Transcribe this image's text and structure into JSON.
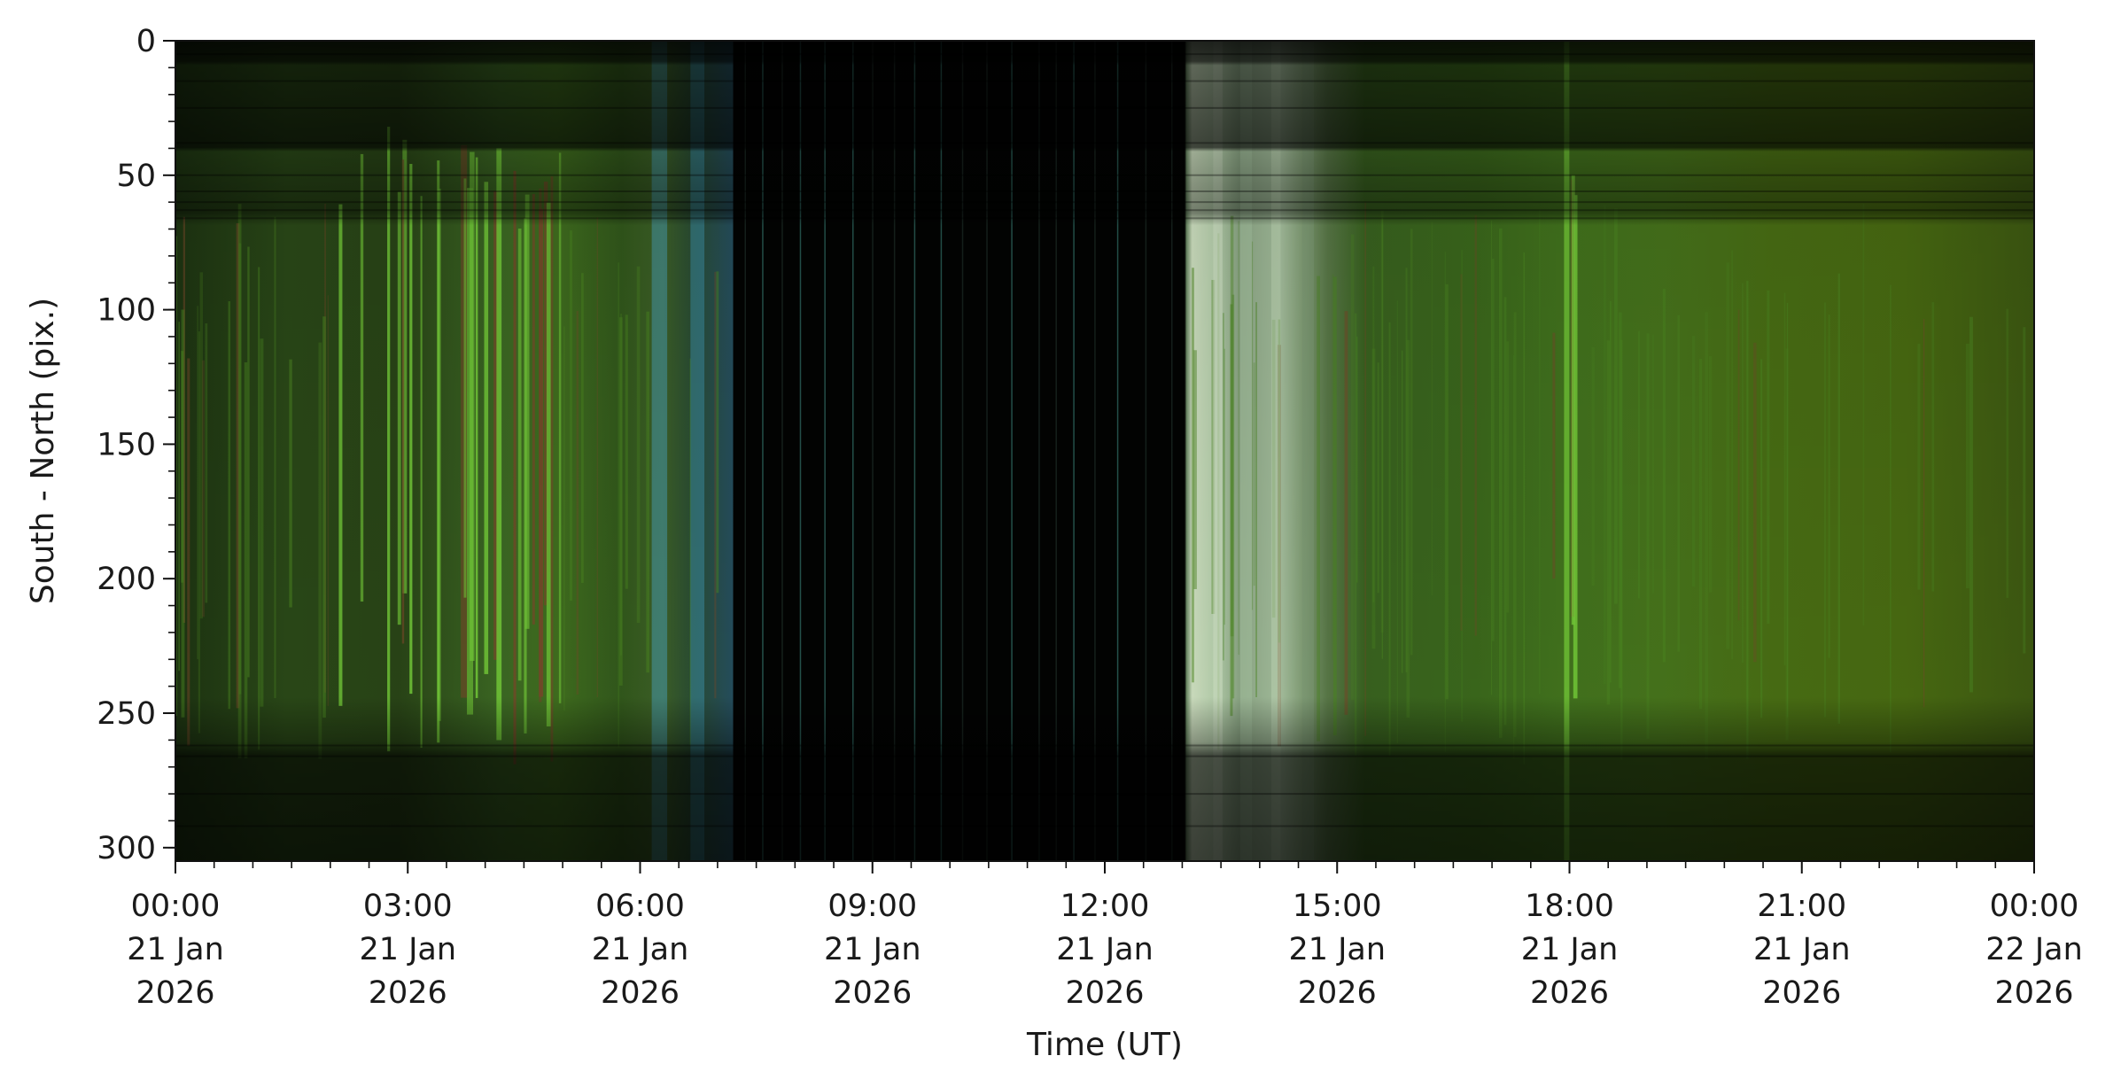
{
  "chart_data": {
    "type": "heatmap",
    "title": "",
    "xlabel": "Time (UT)",
    "ylabel": "South - North (pix.)",
    "x_axis": {
      "type": "time",
      "range": [
        "2026-01-21 00:00",
        "2026-01-22 00:00"
      ],
      "major_ticks": [
        {
          "time": "2026-01-21 00:00",
          "label": [
            "00:00",
            "21 Jan",
            "2026"
          ]
        },
        {
          "time": "2026-01-21 03:00",
          "label": [
            "03:00",
            "21 Jan",
            "2026"
          ]
        },
        {
          "time": "2026-01-21 06:00",
          "label": [
            "06:00",
            "21 Jan",
            "2026"
          ]
        },
        {
          "time": "2026-01-21 09:00",
          "label": [
            "09:00",
            "21 Jan",
            "2026"
          ]
        },
        {
          "time": "2026-01-21 12:00",
          "label": [
            "12:00",
            "21 Jan",
            "2026"
          ]
        },
        {
          "time": "2026-01-21 15:00",
          "label": [
            "15:00",
            "21 Jan",
            "2026"
          ]
        },
        {
          "time": "2026-01-21 18:00",
          "label": [
            "18:00",
            "21 Jan",
            "2026"
          ]
        },
        {
          "time": "2026-01-21 21:00",
          "label": [
            "21:00",
            "21 Jan",
            "2026"
          ]
        },
        {
          "time": "2026-01-22 00:00",
          "label": [
            "00:00",
            "22 Jan",
            "2026"
          ]
        }
      ],
      "minor_tick_interval_hours": 0.5
    },
    "y_axis": {
      "range": [
        305,
        0
      ],
      "inverted": true,
      "major_ticks": [
        0,
        50,
        100,
        150,
        200,
        250,
        300
      ],
      "minor_tick_interval": 10
    },
    "grid": false,
    "legend": "none",
    "colors": {
      "background": "#ffffff",
      "text": "#1a1a1a",
      "night": "#020302",
      "twilight_morning": "#3f9bb7",
      "twilight_evening": "#c8dec0",
      "aurora_green": "#4d8a22",
      "aurora_bright": "#77d13a"
    },
    "bands": [
      {
        "label": "night",
        "start": "2026-01-21 07:03",
        "end": "2026-01-21 13:03"
      }
    ]
  }
}
